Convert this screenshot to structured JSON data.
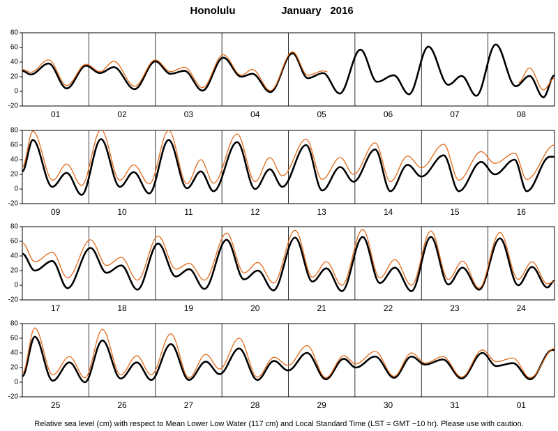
{
  "title": "Honolulu",
  "month": "January",
  "year": "2016",
  "footnote": "Relative sea level (cm) with respect to Mean Lower Low Water (117 cm) and Local Standard Time (LST = GMT −10 hr). Please use with caution.",
  "chart_data": [
    {
      "type": "line",
      "categories": [
        "01",
        "02",
        "03",
        "04",
        "05",
        "06",
        "07",
        "08"
      ],
      "xlim": [
        0,
        192
      ],
      "ylim": [
        -20,
        80
      ],
      "yticks": [
        -20,
        0,
        20,
        40,
        60,
        80
      ],
      "series": [
        {
          "color": "#000000",
          "x": [
            0,
            3,
            9.5,
            16,
            23,
            28,
            33,
            40.5,
            48,
            53.5,
            58.5,
            65,
            72.5,
            79,
            83,
            89.5,
            97.5,
            103,
            108.5,
            114.5,
            122,
            128,
            134,
            139.5,
            146.5,
            153.7,
            158.5,
            163.8,
            170.8,
            178,
            183,
            188,
            192
          ],
          "values": [
            28,
            23,
            38,
            4,
            35,
            25,
            33,
            3,
            41,
            24,
            28,
            1,
            46,
            20,
            24,
            -1,
            52,
            18,
            25,
            -3,
            57,
            13,
            22,
            -4,
            61,
            9,
            21,
            -6,
            64,
            7,
            21,
            -8,
            22
          ]
        },
        {
          "color": "#e06a1a",
          "x": [
            0,
            3,
            9.5,
            16,
            23,
            28,
            33,
            40.5,
            48,
            53.5,
            58.5,
            65,
            72.5,
            79,
            83,
            89.5,
            97.5,
            103,
            108.5,
            110,
            150,
            179,
            183,
            188,
            192
          ],
          "values": [
            30,
            26,
            43,
            8,
            37,
            27,
            41,
            7,
            43,
            27,
            33,
            5,
            50,
            22,
            30,
            1,
            54,
            22,
            28,
            27,
            null,
            12,
            32,
            2,
            18
          ]
        }
      ]
    },
    {
      "type": "line",
      "categories": [
        "09",
        "10",
        "11",
        "12",
        "13",
        "14",
        "15",
        "16"
      ],
      "xlim": [
        0,
        192
      ],
      "ylim": [
        -20,
        80
      ],
      "yticks": [
        -20,
        0,
        20,
        40,
        60,
        80
      ],
      "series": [
        {
          "color": "#000000",
          "x": [
            0,
            3.8,
            10.8,
            16,
            21.4,
            28.4,
            35.2,
            40.2,
            45.8,
            52.8,
            59.4,
            64.4,
            69,
            77.5,
            84,
            89.3,
            93.8,
            102.4,
            108.2,
            114.7,
            119.5,
            127.3,
            132.8,
            139,
            144,
            152,
            157.5,
            165.5,
            170.5,
            177.6,
            182,
            190.3,
            192
          ],
          "values": [
            24,
            67,
            3,
            22,
            -8,
            68,
            3,
            23,
            -6,
            67,
            1,
            24,
            -3,
            64,
            0,
            27,
            3,
            60,
            -2,
            30,
            10,
            54,
            -3,
            33,
            17,
            46,
            -3,
            37,
            20,
            40,
            -3,
            44,
            44
          ]
        },
        {
          "color": "#e06a1a",
          "x": [
            0,
            3.8,
            11,
            16,
            21.4,
            28.4,
            35.2,
            40.2,
            45.8,
            52.8,
            59.4,
            64.4,
            69,
            77.5,
            84,
            89.3,
            93.8,
            102.4,
            108.2,
            114.7,
            119.5,
            127.3,
            132.8,
            139,
            144,
            152,
            157.5,
            165.5,
            170.5,
            177.6,
            182,
            192
          ],
          "values": [
            30,
            79,
            12,
            34,
            5,
            81,
            12,
            33,
            7,
            80,
            7,
            40,
            8,
            75,
            10,
            43,
            18,
            68,
            13,
            43,
            20,
            63,
            10,
            45,
            29,
            61,
            12,
            51,
            35,
            49,
            13,
            60
          ]
        }
      ]
    },
    {
      "type": "line",
      "categories": [
        "17",
        "18",
        "19",
        "20",
        "21",
        "22",
        "23",
        "24"
      ],
      "xlim": [
        0,
        192
      ],
      "ylim": [
        -20,
        80
      ],
      "yticks": [
        -20,
        0,
        20,
        40,
        60,
        80
      ],
      "series": [
        {
          "color": "#000000",
          "x": [
            0,
            4.5,
            10.8,
            16.3,
            24.6,
            30.4,
            35.7,
            41.5,
            49,
            55.4,
            60.2,
            65.7,
            73.7,
            80,
            85,
            90.6,
            98.4,
            104.7,
            109.7,
            115.3,
            122.8,
            129,
            134.4,
            140.4,
            147.4,
            153.7,
            158.8,
            164.8,
            172.3,
            178.9,
            183.9,
            189.4,
            192
          ],
          "values": [
            43,
            20,
            33,
            -4,
            51,
            17,
            27,
            -6,
            57,
            12,
            22,
            -5,
            62,
            8,
            20,
            -7,
            65,
            5,
            23,
            -8,
            66,
            3,
            24,
            -8,
            66,
            1,
            24,
            -6,
            64,
            0,
            25,
            -3,
            6
          ]
        },
        {
          "color": "#e06a1a",
          "x": [
            0,
            4.5,
            10.8,
            16.3,
            24.6,
            30.4,
            35.7,
            41.5,
            49,
            55.4,
            60.2,
            65.7,
            73.7,
            80,
            85,
            90.6,
            98.4,
            104.7,
            109.7,
            115.3,
            122.8,
            129,
            134.4,
            140.4,
            147.4,
            153.7,
            158.8,
            164.8,
            172.3,
            178.9,
            183.9,
            189.4,
            192
          ],
          "values": [
            58,
            32,
            45,
            10,
            62,
            27,
            38,
            7,
            67,
            22,
            30,
            7,
            71,
            17,
            31,
            3,
            75,
            11,
            32,
            0,
            76,
            10,
            35,
            0,
            74,
            8,
            33,
            -4,
            72,
            8,
            32,
            2,
            5
          ]
        }
      ]
    },
    {
      "type": "line",
      "categories": [
        "25",
        "26",
        "27",
        "28",
        "29",
        "30",
        "31",
        "01"
      ],
      "xlim": [
        0,
        192
      ],
      "ylim": [
        -20,
        80
      ],
      "yticks": [
        -20,
        0,
        20,
        40,
        60,
        80
      ],
      "series": [
        {
          "color": "#000000",
          "x": [
            0,
            4.5,
            11,
            17,
            22.6,
            28.9,
            35.5,
            41.3,
            46.5,
            53.6,
            60.1,
            66.2,
            71.2,
            78.2,
            84.8,
            90.8,
            95.9,
            102.7,
            109.5,
            116,
            120.3,
            127.3,
            134.1,
            140.4,
            145.4,
            151.7,
            158.5,
            166,
            171,
            177,
            183.2,
            191.2,
            192
          ],
          "values": [
            8,
            62,
            2,
            27,
            0,
            57,
            5,
            27,
            3,
            52,
            3,
            28,
            11,
            46,
            3,
            29,
            16,
            40,
            4,
            32,
            20,
            35,
            6,
            35,
            24,
            31,
            5,
            40,
            22,
            26,
            4,
            44,
            44
          ]
        },
        {
          "color": "#e06a1a",
          "x": [
            0,
            4.5,
            11,
            17,
            22.6,
            28.9,
            35.5,
            41.3,
            46.5,
            53.6,
            60.1,
            66.2,
            71.2,
            78.2,
            84.8,
            90.8,
            95.9,
            102.7,
            109.5,
            116,
            120.3,
            127.3,
            134.1,
            140.4,
            145.4,
            151.7,
            158.5,
            166,
            171,
            177,
            183.2,
            192
          ],
          "values": [
            12,
            74,
            10,
            35,
            6,
            72,
            10,
            36,
            10,
            66,
            6,
            38,
            18,
            60,
            7,
            34,
            23,
            50,
            6,
            36,
            25,
            42,
            8,
            40,
            26,
            35,
            7,
            44,
            28,
            33,
            6,
            46
          ]
        }
      ]
    }
  ]
}
